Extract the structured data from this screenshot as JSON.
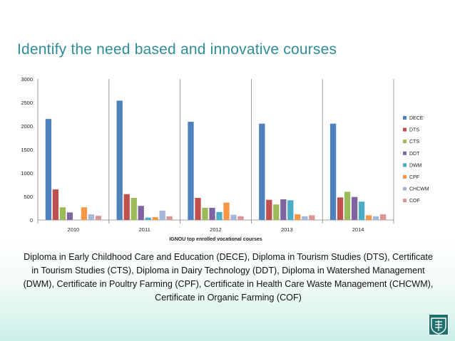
{
  "slide": {
    "title": "Identify the need based and innovative courses",
    "caption": "Diploma in Early Childhood Care and Education (DECE), Diploma in Tourism Studies (DTS), Certificate in Tourism Studies (CTS), Diploma in Dairy Technology (DDT), Diploma in Watershed Management (DWM), Certificate in Poultry Farming (CPF), Certificate in Health Care Waste Management (CHCWM), Certificate in Organic Farming (COF)",
    "logo_icon": "university-emblem-icon"
  },
  "chart_data": {
    "type": "bar",
    "title": "",
    "xlabel": "IGNOU top enrolled vocational courses",
    "ylabel": "",
    "categories": [
      "2010",
      "2011",
      "2012",
      "2013",
      "2014"
    ],
    "yticks": [
      "0",
      "500",
      "1000",
      "1500",
      "2000",
      "2500",
      "3000"
    ],
    "ylim": [
      0,
      3000
    ],
    "grid": false,
    "legend_position": "right",
    "series": [
      {
        "name": "DECE",
        "color": "#4f81bd",
        "values": [
          2150,
          2540,
          2090,
          2050,
          2050
        ]
      },
      {
        "name": "DTS",
        "color": "#c0504d",
        "values": [
          650,
          550,
          470,
          430,
          480
        ]
      },
      {
        "name": "CTS",
        "color": "#9bbb59",
        "values": [
          270,
          470,
          260,
          330,
          600
        ]
      },
      {
        "name": "DDT",
        "color": "#8064a2",
        "values": [
          160,
          300,
          260,
          440,
          490
        ]
      },
      {
        "name": "DWM",
        "color": "#4bacc6",
        "values": [
          0,
          50,
          170,
          420,
          390
        ]
      },
      {
        "name": "CPF",
        "color": "#f79646",
        "values": [
          270,
          60,
          370,
          120,
          100
        ]
      },
      {
        "name": "CHCWM",
        "color": "#a5b6d8",
        "values": [
          120,
          200,
          110,
          80,
          80
        ]
      },
      {
        "name": "COF",
        "color": "#d99694",
        "values": [
          90,
          80,
          80,
          100,
          120
        ]
      }
    ]
  }
}
